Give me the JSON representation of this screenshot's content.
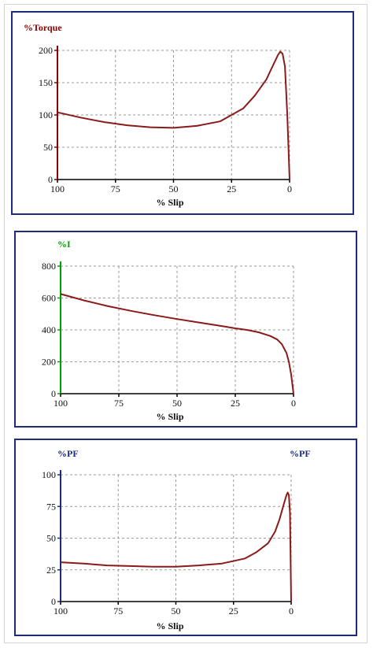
{
  "chart_data": [
    {
      "type": "line",
      "ylabel": "%Torque",
      "ylabel_right": "",
      "xlabel": "% Slip",
      "xlim": [
        100,
        0
      ],
      "ylim": [
        0,
        200
      ],
      "xticks": [
        100,
        75,
        50,
        25,
        0
      ],
      "yticks": [
        0,
        50,
        100,
        150,
        200
      ],
      "grid": true,
      "axis_color": "#8b0000",
      "label_color": "#8b0000",
      "line_color": "#8b1a1a",
      "series": [
        {
          "x": [
            100,
            90,
            80,
            70,
            60,
            50,
            40,
            30,
            20,
            15,
            10,
            7,
            5,
            4,
            3,
            2,
            1,
            0
          ],
          "y": [
            104,
            96,
            89,
            84,
            81,
            80,
            83,
            90,
            110,
            130,
            155,
            178,
            193,
            198,
            195,
            175,
            100,
            0
          ]
        }
      ]
    },
    {
      "type": "line",
      "ylabel": "%I",
      "ylabel_right": "",
      "xlabel": "% Slip",
      "xlim": [
        100,
        0
      ],
      "ylim": [
        0,
        800
      ],
      "xticks": [
        100,
        75,
        50,
        25,
        0
      ],
      "yticks": [
        0,
        200,
        400,
        600,
        800
      ],
      "grid": true,
      "axis_color": "#00a000",
      "label_color": "#00a000",
      "line_color": "#8b1a1a",
      "series": [
        {
          "x": [
            100,
            90,
            80,
            70,
            60,
            50,
            40,
            30,
            25,
            20,
            15,
            10,
            7,
            5,
            3,
            2,
            1,
            0
          ],
          "y": [
            625,
            585,
            550,
            520,
            493,
            468,
            445,
            422,
            410,
            400,
            385,
            362,
            340,
            310,
            255,
            200,
            120,
            0
          ]
        }
      ]
    },
    {
      "type": "line",
      "ylabel": "%PF",
      "ylabel_right": "%PF",
      "xlabel": "% Slip",
      "xlim": [
        100,
        0
      ],
      "ylim": [
        0,
        100
      ],
      "xticks": [
        100,
        75,
        50,
        25,
        0
      ],
      "yticks": [
        0,
        25,
        50,
        75,
        100
      ],
      "grid": true,
      "axis_color": "#1e2a7a",
      "label_color": "#1e2a7a",
      "line_color": "#8b1a1a",
      "series": [
        {
          "x": [
            100,
            90,
            80,
            70,
            60,
            50,
            40,
            30,
            20,
            15,
            10,
            7,
            5,
            3,
            2,
            1.5,
            1,
            0.5,
            0
          ],
          "y": [
            31,
            30,
            28.5,
            28,
            27.5,
            27.5,
            28.5,
            30,
            34,
            39,
            46,
            55,
            65,
            78,
            84,
            86,
            84,
            70,
            0
          ]
        }
      ]
    }
  ]
}
